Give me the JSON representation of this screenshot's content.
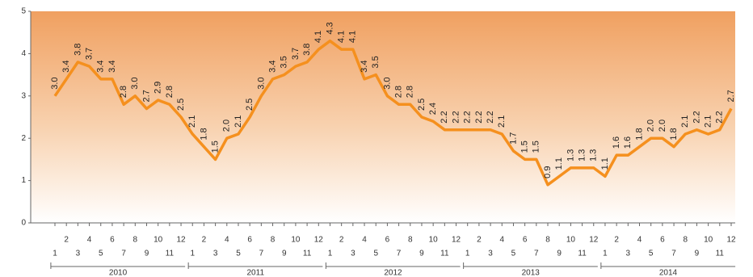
{
  "chart_data": {
    "type": "line",
    "categories": [
      "1",
      "2",
      "3",
      "4",
      "5",
      "6",
      "7",
      "8",
      "9",
      "10",
      "11",
      "12",
      "1",
      "2",
      "3",
      "4",
      "5",
      "6",
      "7",
      "8",
      "9",
      "10",
      "11",
      "12",
      "1",
      "2",
      "3",
      "4",
      "5",
      "6",
      "7",
      "8",
      "9",
      "10",
      "11",
      "12",
      "1",
      "2",
      "3",
      "4",
      "5",
      "6",
      "7",
      "8",
      "9",
      "10",
      "11",
      "12",
      "1",
      "2",
      "3",
      "4",
      "5",
      "6",
      "7",
      "8",
      "9",
      "10",
      "11",
      "12"
    ],
    "groups": [
      "2010",
      "2011",
      "2012",
      "2013",
      "2014"
    ],
    "series": [
      {
        "color": "#f5901e",
        "values": [
          3.0,
          3.4,
          3.8,
          3.7,
          3.4,
          3.4,
          2.8,
          3.0,
          2.7,
          2.9,
          2.8,
          2.5,
          2.1,
          1.8,
          1.5,
          2.0,
          2.1,
          2.5,
          3.0,
          3.4,
          3.5,
          3.7,
          3.8,
          4.1,
          4.3,
          4.1,
          4.1,
          3.4,
          3.5,
          3.0,
          2.8,
          2.8,
          2.5,
          2.4,
          2.2,
          2.2,
          2.2,
          2.2,
          2.2,
          2.1,
          1.7,
          1.5,
          1.5,
          0.9,
          1.1,
          1.3,
          1.3,
          1.3,
          1.1,
          1.6,
          1.6,
          1.8,
          2.0,
          2.0,
          1.8,
          2.1,
          2.2,
          2.1,
          2.2,
          2.7
        ],
        "value_labels": [
          "3.0",
          "3.4",
          "3.8",
          "3.7",
          "3.4",
          "3.4",
          "2.8",
          "3.0",
          "2.7",
          "2.9",
          "2.8",
          "2.5",
          "2.1",
          "1.8",
          "1.5",
          "2.0",
          "2.1",
          "2.5",
          "3.0",
          "3.4",
          "3.5",
          "3.7",
          "3.8",
          "4.1",
          "4.3",
          "4.1",
          "4.1",
          "3.4",
          "3.5",
          "3.0",
          "2.8",
          "2.8",
          "2.5",
          "2.4",
          "2.2",
          "2.2",
          "2.2",
          "2.2",
          "2.2",
          "2.1",
          "1.7",
          "1.5",
          "1.5",
          "0.9",
          "1.1",
          "1.3",
          "1.3",
          "1.3",
          "1.1",
          "1.6",
          "1.6",
          "1.8",
          "2.0",
          "2.0",
          "1.8",
          "2.1",
          "2.2",
          "2.1",
          "2.2",
          "2.7"
        ]
      }
    ],
    "ylim": [
      0,
      5
    ],
    "yticks": [
      0,
      1,
      2,
      3,
      4,
      5
    ],
    "grid": false
  }
}
